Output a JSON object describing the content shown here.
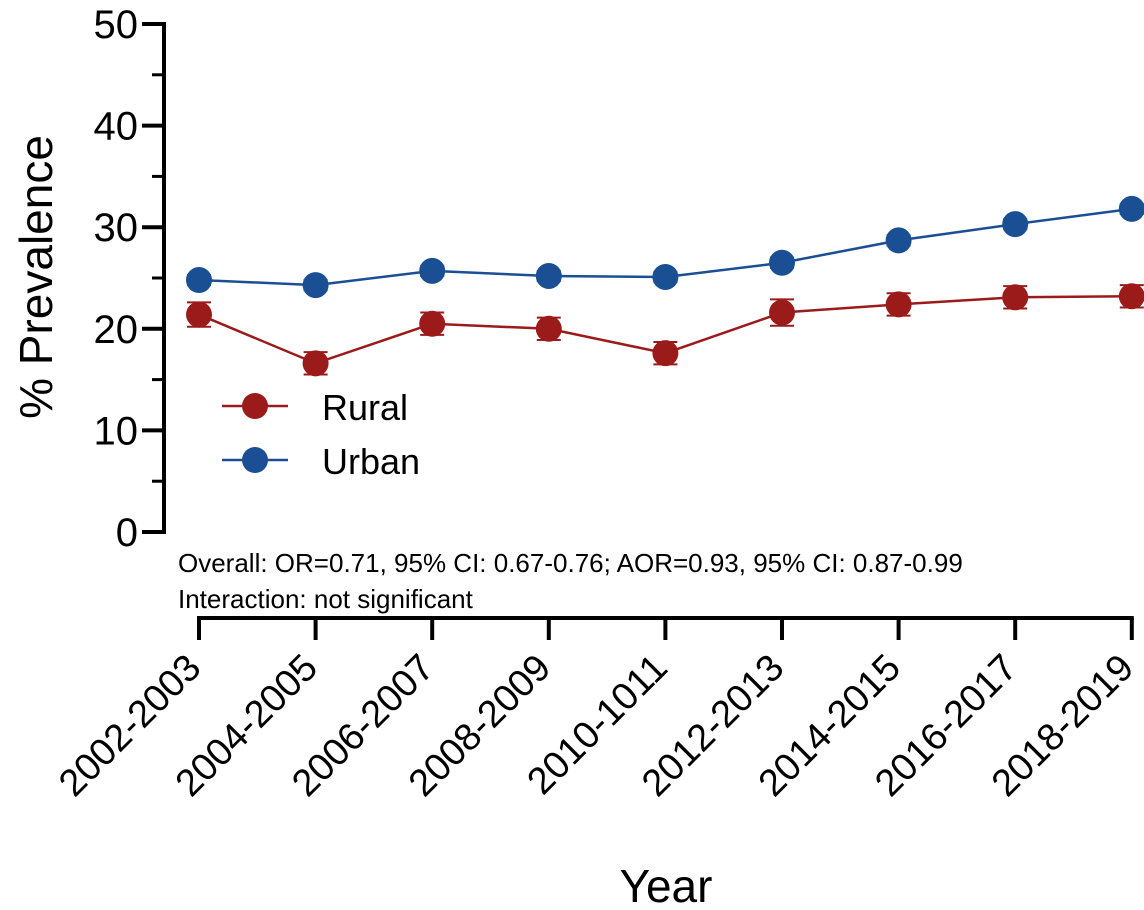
{
  "chart_data": {
    "type": "line",
    "ylabel": "% Prevalence",
    "xlabel": "Year",
    "ylim": [
      0,
      50
    ],
    "y_ticks": [
      0,
      10,
      20,
      30,
      40,
      50
    ],
    "y_tick_labels": [
      "0",
      "10",
      "20",
      "30",
      "40",
      "50"
    ],
    "categories": [
      "2002-2003",
      "2004-2005",
      "2006-2007",
      "2008-2009",
      "2010-1011",
      "2012-2013",
      "2014-2015",
      "2016-2017",
      "2018-2019"
    ],
    "series": [
      {
        "name": "Rural",
        "color": "#9b1b1b",
        "values": [
          21.4,
          16.6,
          20.5,
          20.0,
          17.6,
          21.6,
          22.4,
          23.1,
          23.2
        ],
        "err": [
          1.2,
          1.1,
          1.1,
          1.1,
          1.1,
          1.3,
          1.1,
          1.1,
          1.1
        ]
      },
      {
        "name": "Urban",
        "color": "#1b4f94",
        "values": [
          24.8,
          24.3,
          25.7,
          25.2,
          25.1,
          26.5,
          28.7,
          30.3,
          31.8
        ],
        "err": [
          0.5,
          0.5,
          0.5,
          0.5,
          0.5,
          0.5,
          0.5,
          0.5,
          0.5
        ]
      }
    ],
    "legend_position": "lower-left",
    "annotations": [
      "Overall: OR=0.71, 95% CI: 0.67-0.76; AOR=0.93, 95% CI: 0.87-0.99",
      "Interaction: not significant"
    ]
  }
}
